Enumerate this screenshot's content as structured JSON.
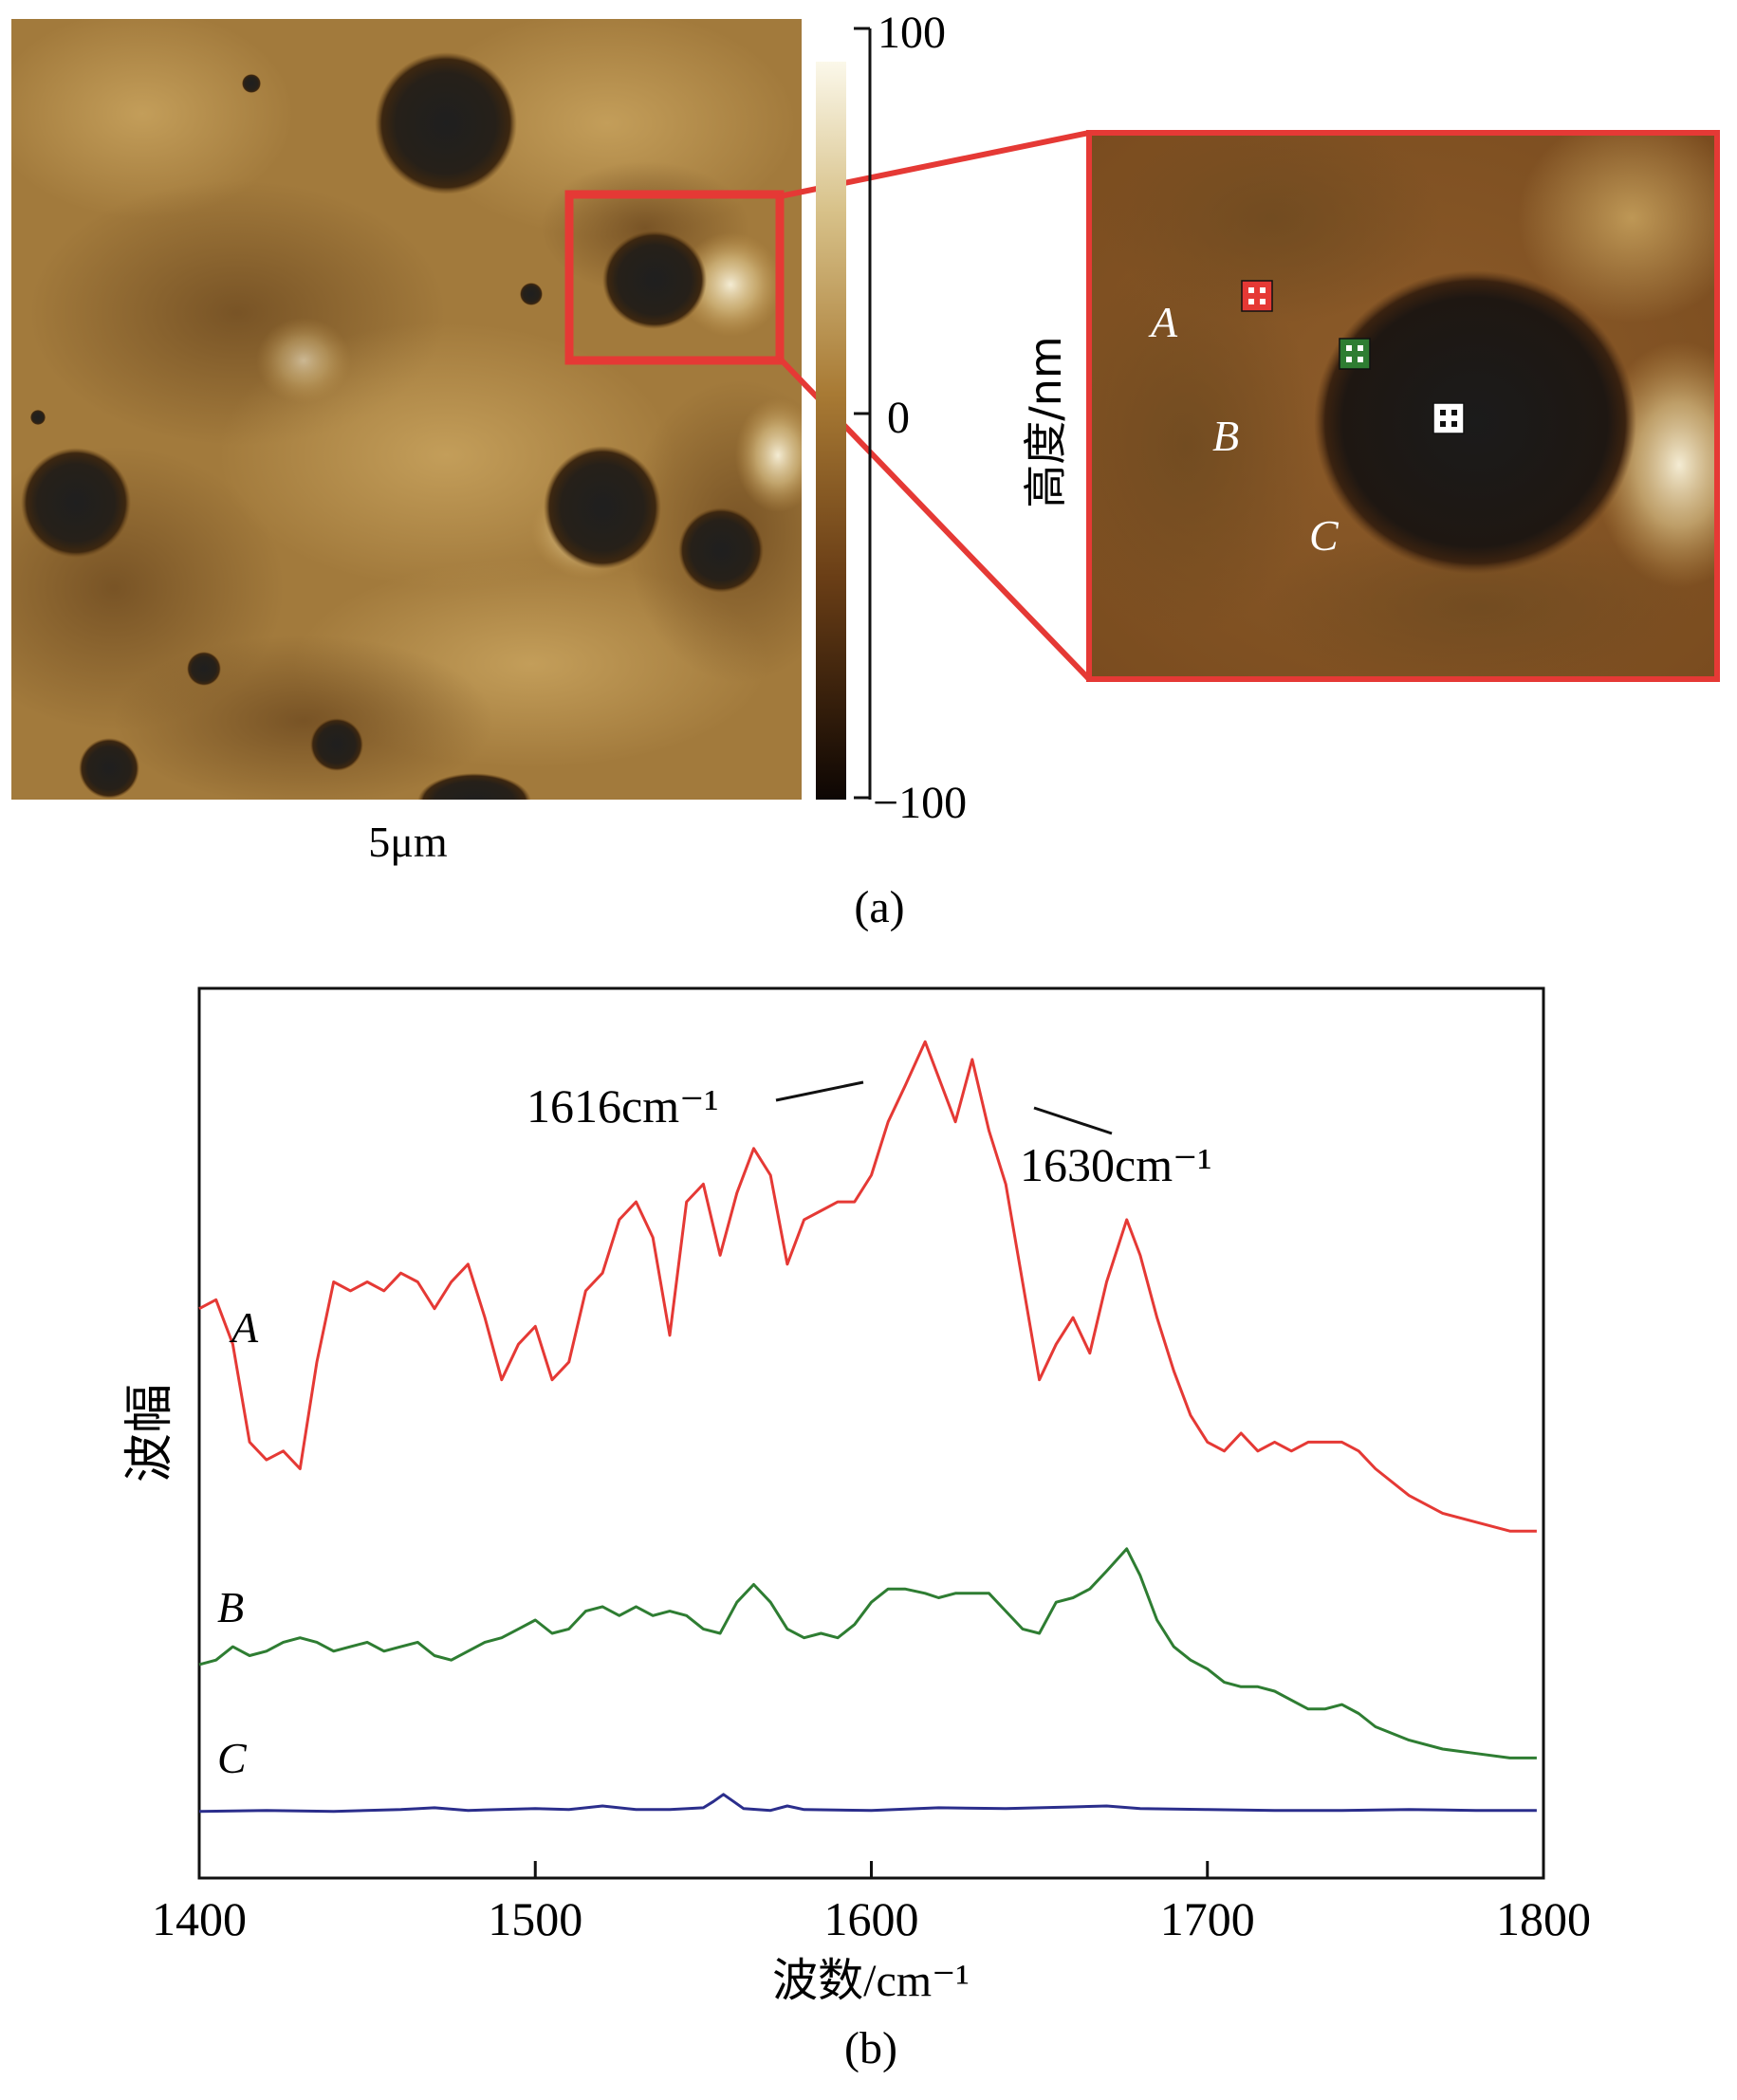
{
  "panel_a": {
    "caption": "(a)",
    "scale_bar_label": "5μm",
    "colorbar": {
      "max_label": "100",
      "mid_label": "0",
      "min_label": "−100",
      "axis_label": "高度/nm",
      "range": [
        -100,
        100
      ]
    },
    "inset_points": [
      {
        "label": "A",
        "marker_color": "#e53935"
      },
      {
        "label": "B",
        "marker_color": "#2e7d32"
      },
      {
        "label": "C",
        "marker_color": "#ffffff"
      }
    ],
    "highlight_color": "#e53935"
  },
  "panel_b": {
    "caption": "(b)",
    "chart_data": {
      "type": "line",
      "xlabel": "波数/cm⁻¹",
      "ylabel": "波幅",
      "xlim": [
        1400,
        1800
      ],
      "xticks": [
        1400,
        1500,
        1600,
        1700,
        1800
      ],
      "xtick_labels": [
        "1400",
        "1500",
        "1600",
        "1700",
        "1800"
      ],
      "annotations": [
        {
          "text": "1616cm⁻¹",
          "x": 1616
        },
        {
          "text": "1630cm⁻¹",
          "x": 1630
        }
      ],
      "grid": false,
      "series": [
        {
          "name": "A",
          "color": "#e53935",
          "x": [
            1400,
            1405,
            1410,
            1415,
            1420,
            1425,
            1430,
            1435,
            1440,
            1445,
            1450,
            1455,
            1460,
            1465,
            1470,
            1475,
            1480,
            1485,
            1490,
            1495,
            1500,
            1505,
            1510,
            1515,
            1520,
            1525,
            1530,
            1535,
            1540,
            1545,
            1550,
            1555,
            1560,
            1565,
            1570,
            1575,
            1580,
            1585,
            1590,
            1595,
            1600,
            1605,
            1610,
            1616,
            1620,
            1625,
            1630,
            1635,
            1640,
            1645,
            1650,
            1655,
            1660,
            1665,
            1670,
            1676,
            1680,
            1685,
            1690,
            1695,
            1700,
            1705,
            1710,
            1715,
            1720,
            1725,
            1730,
            1735,
            1740,
            1745,
            1750,
            1760,
            1770,
            1780,
            1790,
            1798
          ],
          "y": [
            0.64,
            0.65,
            0.6,
            0.49,
            0.47,
            0.48,
            0.46,
            0.58,
            0.67,
            0.66,
            0.67,
            0.66,
            0.68,
            0.67,
            0.64,
            0.67,
            0.69,
            0.63,
            0.56,
            0.6,
            0.62,
            0.56,
            0.58,
            0.66,
            0.68,
            0.74,
            0.76,
            0.72,
            0.61,
            0.76,
            0.78,
            0.7,
            0.77,
            0.82,
            0.79,
            0.69,
            0.74,
            0.75,
            0.76,
            0.76,
            0.79,
            0.85,
            0.89,
            0.94,
            0.9,
            0.85,
            0.92,
            0.84,
            0.78,
            0.67,
            0.56,
            0.6,
            0.63,
            0.59,
            0.67,
            0.74,
            0.7,
            0.63,
            0.57,
            0.52,
            0.49,
            0.48,
            0.5,
            0.48,
            0.49,
            0.48,
            0.49,
            0.49,
            0.49,
            0.48,
            0.46,
            0.43,
            0.41,
            0.4,
            0.39,
            0.39
          ]
        },
        {
          "name": "B",
          "color": "#2e7d32",
          "x": [
            1400,
            1405,
            1410,
            1415,
            1420,
            1425,
            1430,
            1435,
            1440,
            1445,
            1450,
            1455,
            1460,
            1465,
            1470,
            1475,
            1480,
            1485,
            1490,
            1495,
            1500,
            1505,
            1510,
            1515,
            1520,
            1525,
            1530,
            1535,
            1540,
            1545,
            1550,
            1555,
            1560,
            1565,
            1570,
            1575,
            1580,
            1585,
            1590,
            1595,
            1600,
            1605,
            1610,
            1616,
            1620,
            1625,
            1630,
            1635,
            1640,
            1645,
            1650,
            1655,
            1660,
            1665,
            1670,
            1676,
            1680,
            1685,
            1690,
            1695,
            1700,
            1705,
            1710,
            1715,
            1720,
            1725,
            1730,
            1735,
            1740,
            1745,
            1750,
            1760,
            1770,
            1780,
            1790,
            1798
          ],
          "y": [
            0.24,
            0.245,
            0.26,
            0.25,
            0.255,
            0.265,
            0.27,
            0.265,
            0.255,
            0.26,
            0.265,
            0.255,
            0.26,
            0.265,
            0.25,
            0.245,
            0.255,
            0.265,
            0.27,
            0.28,
            0.29,
            0.275,
            0.28,
            0.3,
            0.305,
            0.295,
            0.305,
            0.295,
            0.3,
            0.295,
            0.28,
            0.275,
            0.31,
            0.33,
            0.31,
            0.28,
            0.27,
            0.275,
            0.27,
            0.285,
            0.31,
            0.325,
            0.325,
            0.32,
            0.315,
            0.32,
            0.32,
            0.32,
            0.3,
            0.28,
            0.275,
            0.31,
            0.315,
            0.325,
            0.345,
            0.37,
            0.34,
            0.29,
            0.26,
            0.245,
            0.235,
            0.22,
            0.215,
            0.215,
            0.21,
            0.2,
            0.19,
            0.19,
            0.195,
            0.185,
            0.17,
            0.155,
            0.145,
            0.14,
            0.135,
            0.135
          ]
        },
        {
          "name": "C",
          "color": "#2b2e8c",
          "x": [
            1400,
            1420,
            1440,
            1460,
            1470,
            1480,
            1500,
            1510,
            1520,
            1530,
            1540,
            1550,
            1553,
            1556,
            1559,
            1562,
            1570,
            1575,
            1580,
            1600,
            1620,
            1640,
            1660,
            1670,
            1680,
            1700,
            1720,
            1740,
            1760,
            1780,
            1798
          ],
          "y": [
            0.075,
            0.076,
            0.075,
            0.077,
            0.079,
            0.076,
            0.078,
            0.077,
            0.081,
            0.077,
            0.077,
            0.079,
            0.086,
            0.094,
            0.086,
            0.078,
            0.076,
            0.081,
            0.077,
            0.076,
            0.079,
            0.078,
            0.08,
            0.081,
            0.078,
            0.077,
            0.076,
            0.076,
            0.077,
            0.076,
            0.076
          ]
        }
      ]
    }
  }
}
